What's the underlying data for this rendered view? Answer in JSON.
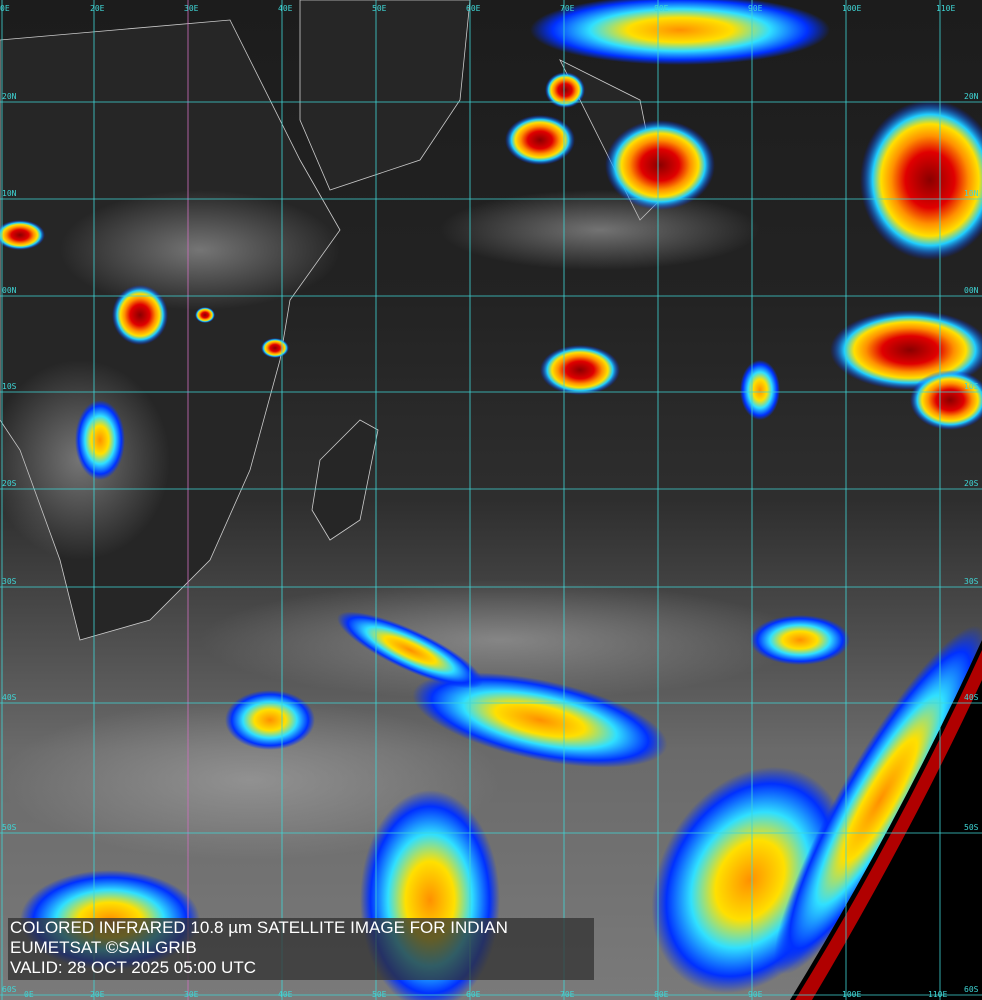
{
  "caption": {
    "line1": "COLORED INFRARED 10.8 µm SATELLITE IMAGE FOR INDIAN",
    "line2": "EUMETSAT ©SAILGRIB",
    "line3": "VALID:  28 OCT 2025 05:00 UTC"
  },
  "grid": {
    "longitudes": [
      "0E",
      "20E",
      "30E",
      "40E",
      "50E",
      "60E",
      "70E",
      "80E",
      "90E",
      "100E",
      "110E"
    ],
    "latitudes": [
      "20N",
      "10N",
      "00N",
      "10S",
      "20S",
      "30S",
      "40S",
      "50S",
      "60S"
    ],
    "grid_color": "#3fd6d6",
    "meridian_highlight_color": "#d070c0"
  },
  "colors": {
    "cold_cloud_top": "#e00000",
    "mid": "#ffd000",
    "warm": "#0030ff",
    "land_outline": "#cccccc",
    "space": "#000000"
  }
}
